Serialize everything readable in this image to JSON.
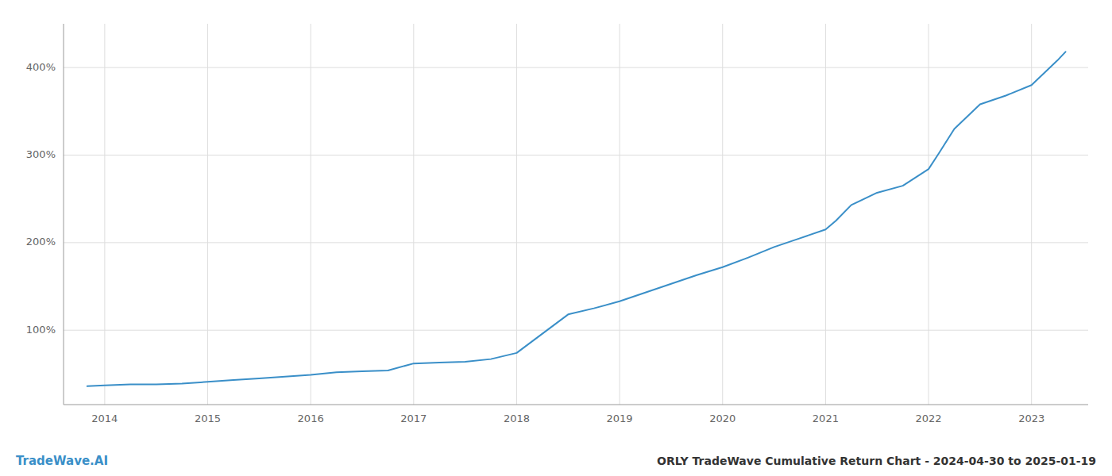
{
  "chart_data": {
    "type": "line",
    "title": "ORLY TradeWave Cumulative Return Chart - 2024-04-30 to 2025-01-19",
    "annotations": [
      "TradeWave.AI"
    ],
    "color": "#3a8fc8",
    "grid": true,
    "xlim": [
      2013.6,
      2023.55
    ],
    "ylim": [
      15,
      450
    ],
    "xticks": [
      2014,
      2015,
      2016,
      2017,
      2018,
      2019,
      2020,
      2021,
      2022,
      2023
    ],
    "yticks": [
      {
        "value": 100,
        "label": "100%"
      },
      {
        "value": 200,
        "label": "200%"
      },
      {
        "value": 300,
        "label": "300%"
      },
      {
        "value": 400,
        "label": "400%"
      }
    ],
    "x": [
      2013.83,
      2014.0,
      2014.25,
      2014.5,
      2014.75,
      2015.0,
      2015.25,
      2015.5,
      2015.75,
      2016.0,
      2016.25,
      2016.5,
      2016.75,
      2017.0,
      2017.25,
      2017.5,
      2017.75,
      2018.0,
      2018.25,
      2018.5,
      2018.75,
      2019.0,
      2019.25,
      2019.5,
      2019.75,
      2020.0,
      2020.25,
      2020.5,
      2020.75,
      2021.0,
      2021.1,
      2021.25,
      2021.5,
      2021.75,
      2022.0,
      2022.1,
      2022.25,
      2022.5,
      2022.75,
      2023.0,
      2023.25,
      2023.33
    ],
    "values": [
      36,
      37,
      38,
      38,
      39,
      41,
      43,
      45,
      47,
      49,
      52,
      53,
      54,
      62,
      63,
      64,
      67,
      74,
      96,
      118,
      125,
      133,
      143,
      153,
      163,
      172,
      183,
      195,
      205,
      215,
      225,
      243,
      257,
      265,
      284,
      302,
      330,
      358,
      368,
      380,
      408,
      418
    ]
  }
}
